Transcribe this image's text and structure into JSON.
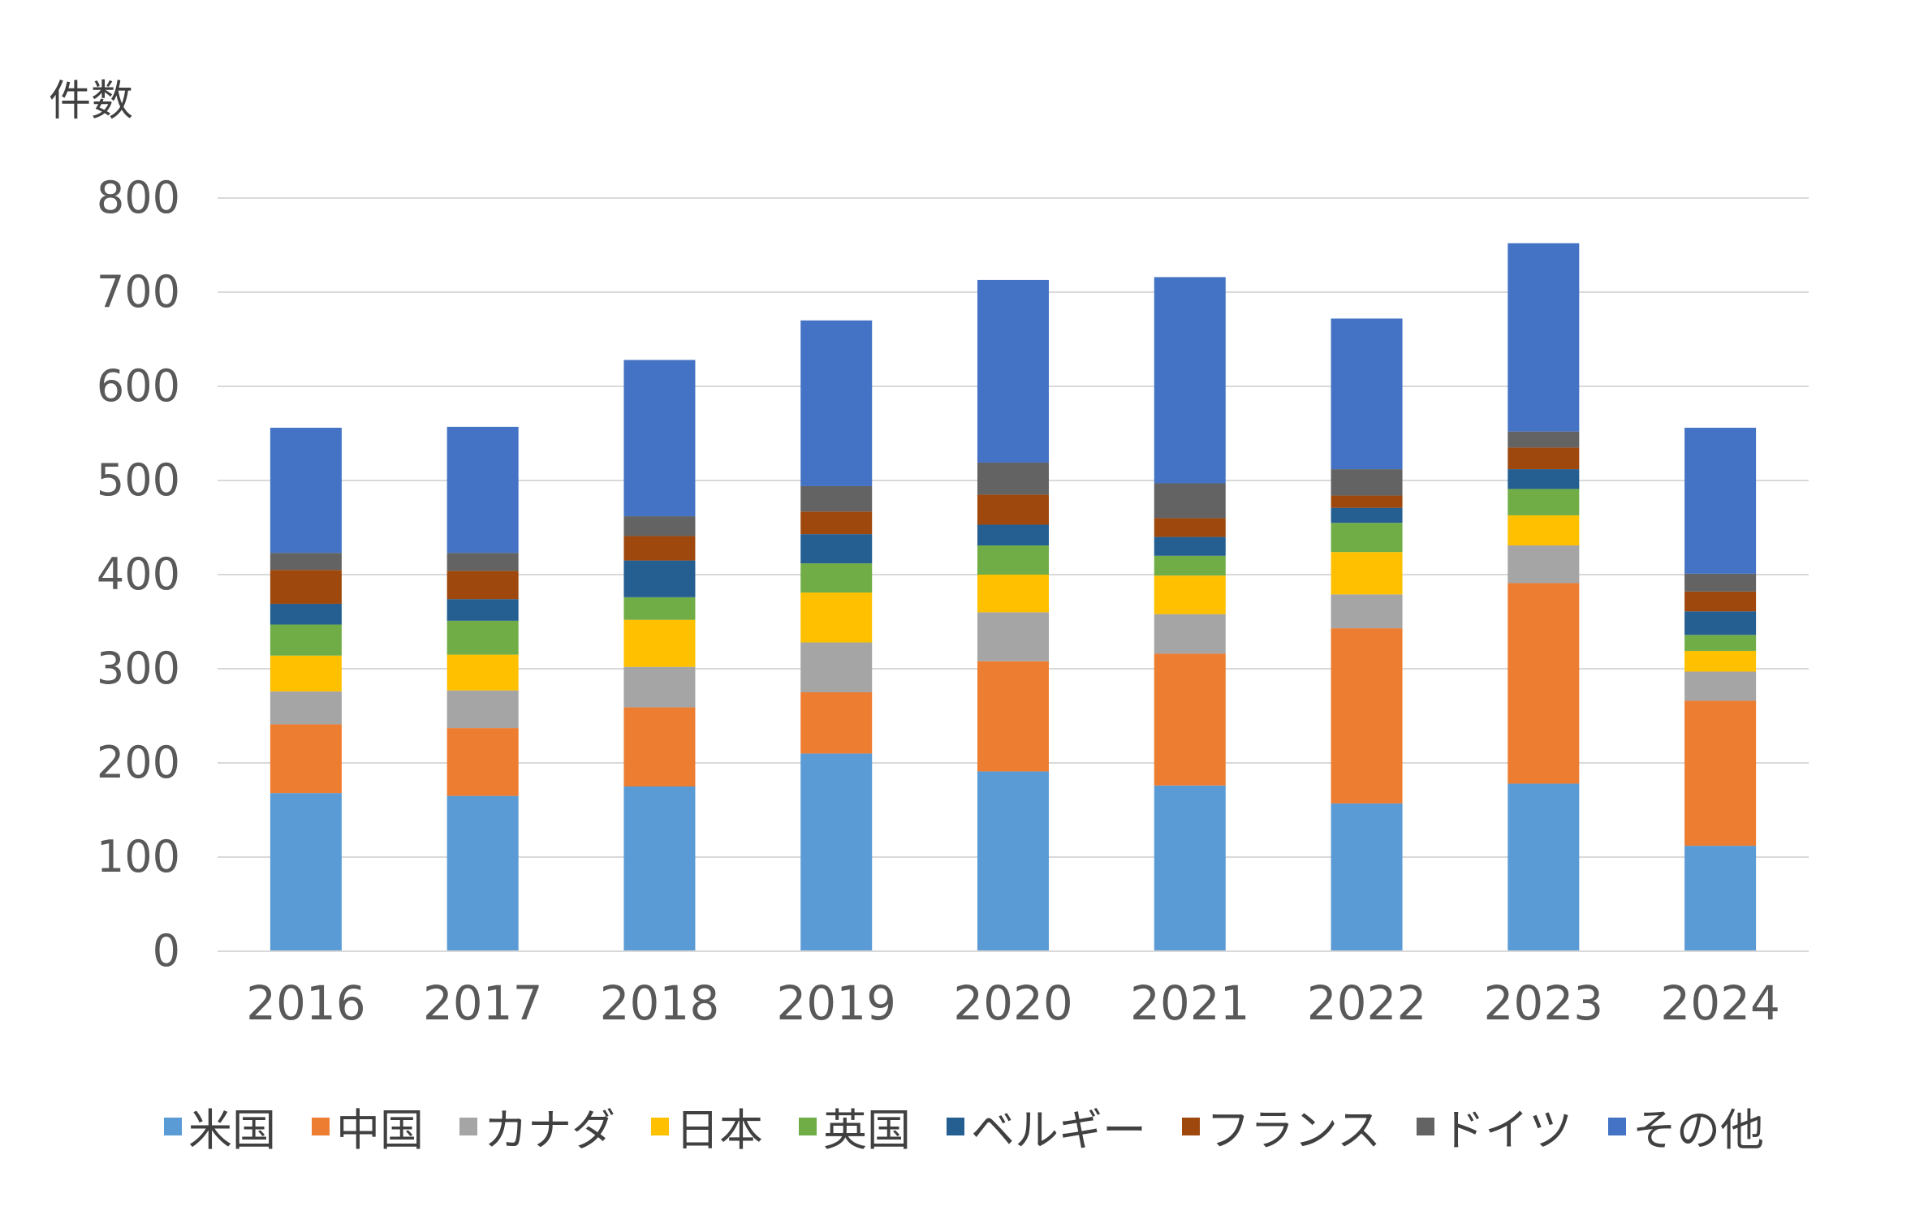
{
  "chart_data": {
    "type": "bar",
    "stacked": true,
    "title": "",
    "xlabel": "",
    "ylabel": "件数",
    "ylim": [
      0,
      800
    ],
    "yticks": [
      0,
      100,
      200,
      300,
      400,
      500,
      600,
      700,
      800
    ],
    "grid": true,
    "legend_position": "bottom",
    "categories": [
      "2016",
      "2017",
      "2018",
      "2019",
      "2020",
      "2021",
      "2022",
      "2023",
      "2024"
    ],
    "series": [
      {
        "name": "米国",
        "color": "#5b9bd5",
        "values": [
          168,
          165,
          175,
          210,
          191,
          176,
          157,
          178,
          112
        ]
      },
      {
        "name": "中国",
        "color": "#ed7d31",
        "values": [
          73,
          72,
          84,
          65,
          117,
          140,
          186,
          213,
          154
        ]
      },
      {
        "name": "カナダ",
        "color": "#a5a5a5",
        "values": [
          35,
          40,
          43,
          53,
          52,
          42,
          36,
          40,
          31
        ]
      },
      {
        "name": "日本",
        "color": "#ffc000",
        "values": [
          38,
          38,
          50,
          53,
          40,
          41,
          45,
          32,
          22
        ]
      },
      {
        "name": "英国",
        "color": "#70ad47",
        "values": [
          33,
          36,
          24,
          31,
          31,
          21,
          31,
          28,
          17
        ]
      },
      {
        "name": "ベルギー",
        "color": "#255e91",
        "values": [
          22,
          23,
          39,
          31,
          22,
          20,
          16,
          21,
          25
        ]
      },
      {
        "name": "フランス",
        "color": "#9e480e",
        "values": [
          36,
          30,
          26,
          24,
          32,
          20,
          13,
          23,
          21
        ]
      },
      {
        "name": "ドイツ",
        "color": "#636363",
        "values": [
          18,
          19,
          21,
          27,
          34,
          37,
          28,
          17,
          19
        ]
      },
      {
        "name": "その他",
        "color": "#4472c4",
        "values": [
          133,
          134,
          166,
          176,
          194,
          219,
          160,
          200,
          155
        ]
      }
    ]
  }
}
